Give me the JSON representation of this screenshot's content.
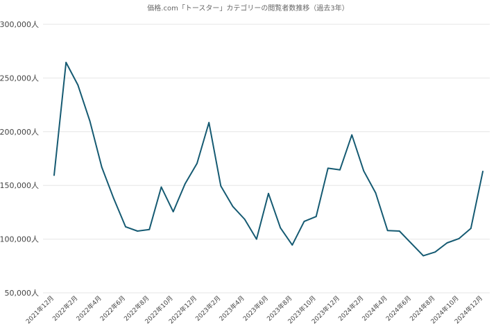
{
  "chart_data": {
    "type": "line",
    "title": "価格.com「トースター」カテゴリーの閲覧者数推移（過去3年）",
    "xlabel": "",
    "ylabel": "",
    "ylim": [
      50000,
      300000
    ],
    "y_ticks": [
      50000,
      100000,
      150000,
      200000,
      250000,
      300000
    ],
    "y_tick_labels": [
      "50,000人",
      "100,000人",
      "150,000人",
      "200,000人",
      "250,000人",
      "300,000人"
    ],
    "grid": true,
    "legend": "none",
    "line_color": "#155a72",
    "x": [
      "2021年12月",
      "2022年1月",
      "2022年2月",
      "2022年3月",
      "2022年4月",
      "2022年5月",
      "2022年6月",
      "2022年7月",
      "2022年8月",
      "2022年9月",
      "2022年10月",
      "2022年11月",
      "2022年12月",
      "2023年1月",
      "2023年2月",
      "2023年3月",
      "2023年4月",
      "2023年5月",
      "2023年6月",
      "2023年7月",
      "2023年8月",
      "2023年9月",
      "2023年10月",
      "2023年11月",
      "2023年12月",
      "2024年1月",
      "2024年2月",
      "2024年3月",
      "2024年4月",
      "2024年5月",
      "2024年6月",
      "2024年7月",
      "2024年8月",
      "2024年9月",
      "2024年10月",
      "2024年11月",
      "2024年12月"
    ],
    "x_tick_labels": [
      "2021年12月",
      "2022年2月",
      "2022年4月",
      "2022年6月",
      "2022年8月",
      "2022年10月",
      "2022年12月",
      "2023年2月",
      "2023年4月",
      "2023年6月",
      "2023年8月",
      "2023年10月",
      "2023年12月",
      "2024年2月",
      "2024年4月",
      "2024年6月",
      "2024年8月",
      "2024年10月",
      "2024年12月"
    ],
    "series": [
      {
        "values": [
          159500,
          264500,
          243500,
          210000,
          167000,
          138000,
          111500,
          107500,
          109000,
          148500,
          125500,
          151500,
          170500,
          208500,
          149500,
          130500,
          118500,
          100000,
          142500,
          110500,
          94500,
          116500,
          121000,
          166000,
          164500,
          197000,
          163500,
          143000,
          108000,
          107500,
          96000,
          84500,
          88000,
          96500,
          100500,
          110000,
          163000
        ]
      }
    ]
  }
}
